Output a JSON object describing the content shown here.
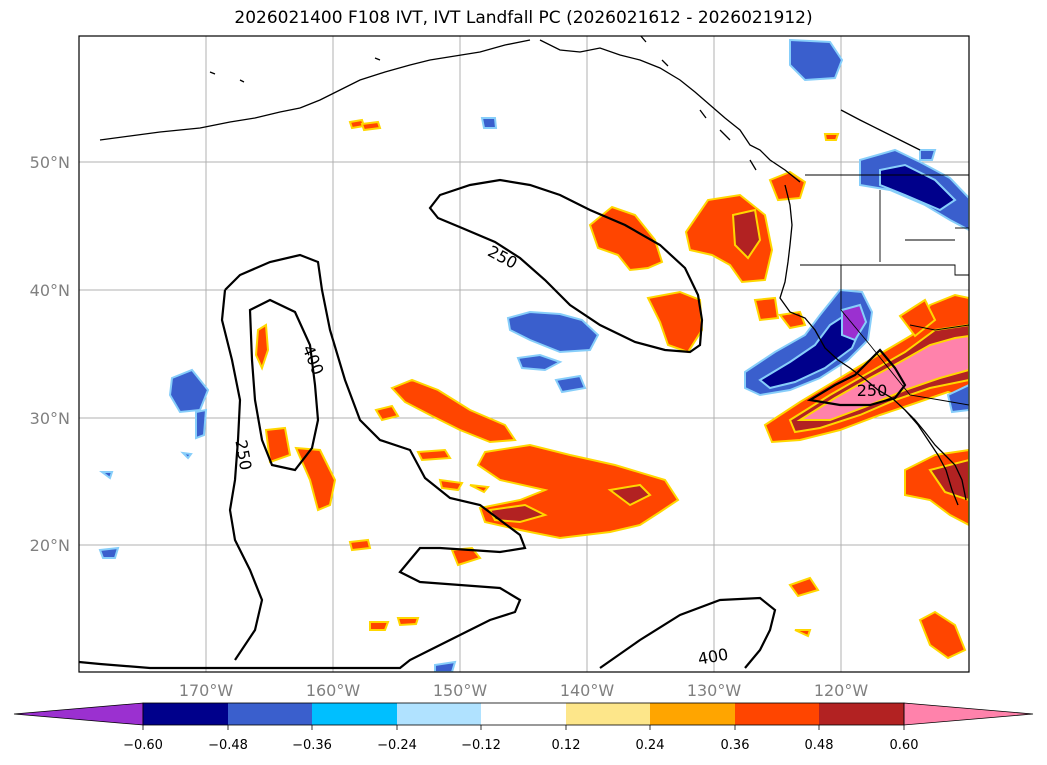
{
  "title": "2026021400 F108 IVT, IVT Landfall PC (2026021612 - 2026021912)",
  "map": {
    "lat_labels": [
      "50°N",
      "40°N",
      "30°N",
      "20°N"
    ],
    "lon_labels": [
      "170°W",
      "160°W",
      "150°W",
      "140°W",
      "130°W",
      "120°W"
    ],
    "contour_labels": [
      "250",
      "400",
      "250",
      "250",
      "400"
    ]
  },
  "colorbar": {
    "ticks": [
      "−0.60",
      "−0.48",
      "−0.36",
      "−0.24",
      "−0.12",
      "0.12",
      "0.24",
      "0.36",
      "0.48",
      "0.60"
    ],
    "colors": [
      "#9b30d0",
      "#00008b",
      "#3a5fcd",
      "#00bfff",
      "#b0e2ff",
      "#ffffff",
      "#fde68a",
      "#ffa500",
      "#ff4500",
      "#b22222",
      "#ff82ab"
    ]
  }
}
